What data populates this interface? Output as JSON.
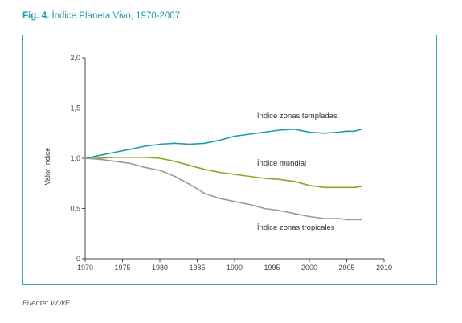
{
  "figure": {
    "number_label": "Fig. 4.",
    "title": "Índice Planeta Vivo, 1970-2007.",
    "source": "Fuente: WWF."
  },
  "colors": {
    "caption": "#1f9aa8",
    "frame": "#3aa6b0",
    "templadas": "#1f9aa8",
    "mundial": "#8aa62a",
    "tropicales": "#9a9a9a",
    "axis": "#444444"
  },
  "chart_data": {
    "type": "line",
    "ylabel": "Valor índice",
    "xlabel": "",
    "xlim": [
      1970,
      2010
    ],
    "ylim": [
      0,
      2.0
    ],
    "x_ticks": [
      "1970",
      "1975",
      "1980",
      "1985",
      "1990",
      "1995",
      "2000",
      "2005",
      "2010"
    ],
    "y_ticks": [
      "0",
      "0,5",
      "1,0",
      "1,5",
      "2,0"
    ],
    "grid": false,
    "legend": "inline labels",
    "x": [
      1970,
      1972,
      1974,
      1976,
      1978,
      1980,
      1982,
      1984,
      1986,
      1988,
      1990,
      1992,
      1994,
      1996,
      1998,
      2000,
      2002,
      2004,
      2005,
      2006,
      2007
    ],
    "series": [
      {
        "name": "Índice zonas templadas",
        "color": "#1f9aa8",
        "values": [
          1.0,
          1.03,
          1.06,
          1.09,
          1.12,
          1.14,
          1.15,
          1.14,
          1.15,
          1.18,
          1.22,
          1.24,
          1.26,
          1.28,
          1.29,
          1.26,
          1.25,
          1.26,
          1.27,
          1.27,
          1.29
        ]
      },
      {
        "name": "Índice mundial",
        "color": "#8aa62a",
        "values": [
          1.0,
          1.0,
          1.01,
          1.01,
          1.01,
          1.0,
          0.97,
          0.93,
          0.89,
          0.86,
          0.84,
          0.82,
          0.8,
          0.79,
          0.77,
          0.73,
          0.71,
          0.71,
          0.71,
          0.71,
          0.72
        ]
      },
      {
        "name": "Índice zonas tropicales",
        "color": "#9a9a9a",
        "values": [
          1.0,
          0.99,
          0.97,
          0.95,
          0.91,
          0.88,
          0.82,
          0.74,
          0.65,
          0.6,
          0.57,
          0.54,
          0.5,
          0.48,
          0.45,
          0.42,
          0.4,
          0.4,
          0.39,
          0.39,
          0.39
        ]
      }
    ]
  }
}
